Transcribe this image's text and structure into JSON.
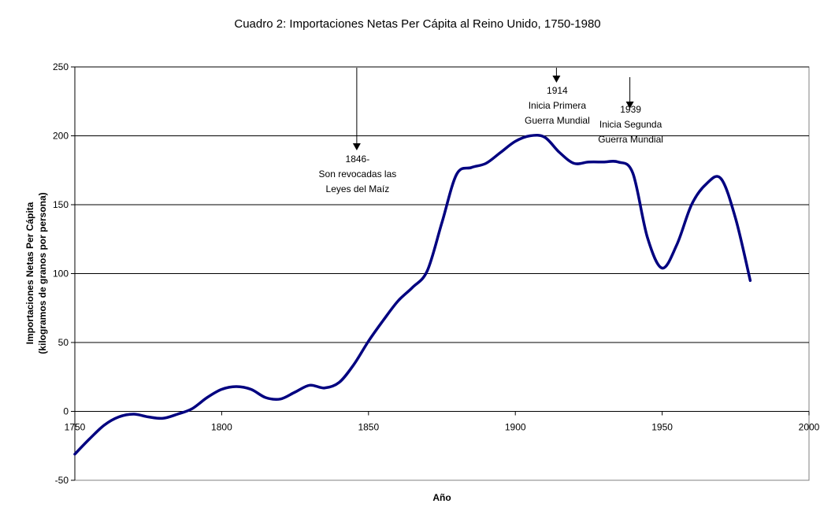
{
  "chart_data": {
    "type": "line",
    "title": "Cuadro 2: Importaciones Netas Per Cápita al Reino Unido, 1750-1980",
    "xlabel": "Año",
    "ylabel_lines": [
      "Importaciones Netas Per Cápita",
      "(kilogramos de granos por persona)"
    ],
    "xlim": [
      1750,
      2000
    ],
    "ylim": [
      -50,
      250
    ],
    "x_ticks": [
      1750,
      1800,
      1850,
      1900,
      1950,
      2000
    ],
    "y_ticks": [
      -50,
      0,
      50,
      100,
      150,
      200,
      250
    ],
    "y_grid_values": [
      50,
      100,
      150,
      200,
      250
    ],
    "grid": true,
    "legend": "none",
    "series_color": "#000080",
    "x": [
      1750,
      1755,
      1760,
      1765,
      1770,
      1775,
      1780,
      1785,
      1790,
      1795,
      1800,
      1805,
      1810,
      1815,
      1820,
      1825,
      1830,
      1835,
      1840,
      1845,
      1850,
      1855,
      1860,
      1865,
      1870,
      1875,
      1880,
      1885,
      1890,
      1895,
      1900,
      1905,
      1910,
      1915,
      1920,
      1925,
      1930,
      1935,
      1940,
      1945,
      1950,
      1955,
      1960,
      1965,
      1970,
      1975,
      1980
    ],
    "values": [
      -31,
      -20,
      -10,
      -4,
      -2,
      -4,
      -5,
      -2,
      2,
      10,
      16,
      18,
      16,
      10,
      9,
      14,
      19,
      17,
      21,
      34,
      51,
      66,
      80,
      90,
      102,
      137,
      172,
      177,
      180,
      188,
      196,
      200,
      199,
      188,
      180,
      181,
      181,
      181,
      173,
      126,
      104,
      121,
      150,
      165,
      169,
      140,
      95
    ],
    "annotations": [
      {
        "year": 1846,
        "text_lines": [
          "1846-",
          "Son revocadas las",
          "Leyes del Maíz"
        ]
      },
      {
        "year": 1914,
        "text_lines": [
          "1914",
          "Inicia Primera",
          "Guerra Mundial"
        ]
      },
      {
        "year": 1939,
        "text_lines": [
          "1939",
          "Inicia Segunda",
          "Guerra Mundial"
        ]
      }
    ]
  }
}
